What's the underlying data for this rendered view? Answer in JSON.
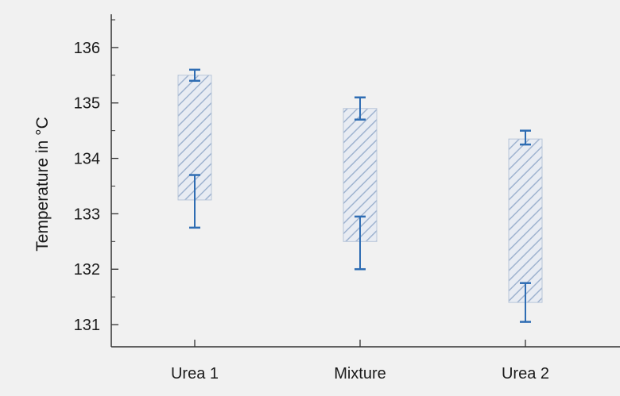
{
  "chart_data": {
    "type": "box",
    "title": "",
    "xlabel": "",
    "ylabel": "Temperature in °C",
    "ylim": [
      130.6,
      136.6
    ],
    "yticks": [
      131,
      132,
      133,
      134,
      135,
      136
    ],
    "grid": false,
    "legend": "none",
    "categories": [
      "Urea 1",
      "Mixture",
      "Urea 2"
    ],
    "boxes": [
      {
        "category": "Urea 1",
        "box_low": 133.25,
        "box_high": 135.5,
        "lower_whisker": 132.75,
        "lower_cap_inner": 133.7,
        "upper_cap_inner": 135.4,
        "upper_whisker": 135.6
      },
      {
        "category": "Mixture",
        "box_low": 132.5,
        "box_high": 134.9,
        "lower_whisker": 132.0,
        "lower_cap_inner": 132.95,
        "upper_cap_inner": 134.7,
        "upper_whisker": 135.1
      },
      {
        "category": "Urea 2",
        "box_low": 131.4,
        "box_high": 134.35,
        "lower_whisker": 131.05,
        "lower_cap_inner": 131.75,
        "upper_cap_inner": 134.25,
        "upper_whisker": 134.5
      }
    ],
    "colors": {
      "box_hatch": "#9fb3cf",
      "box_edge": "#b9c6d9",
      "whisker": "#2f6db3",
      "axis": "#333333",
      "background": "#f1f1f1"
    }
  }
}
